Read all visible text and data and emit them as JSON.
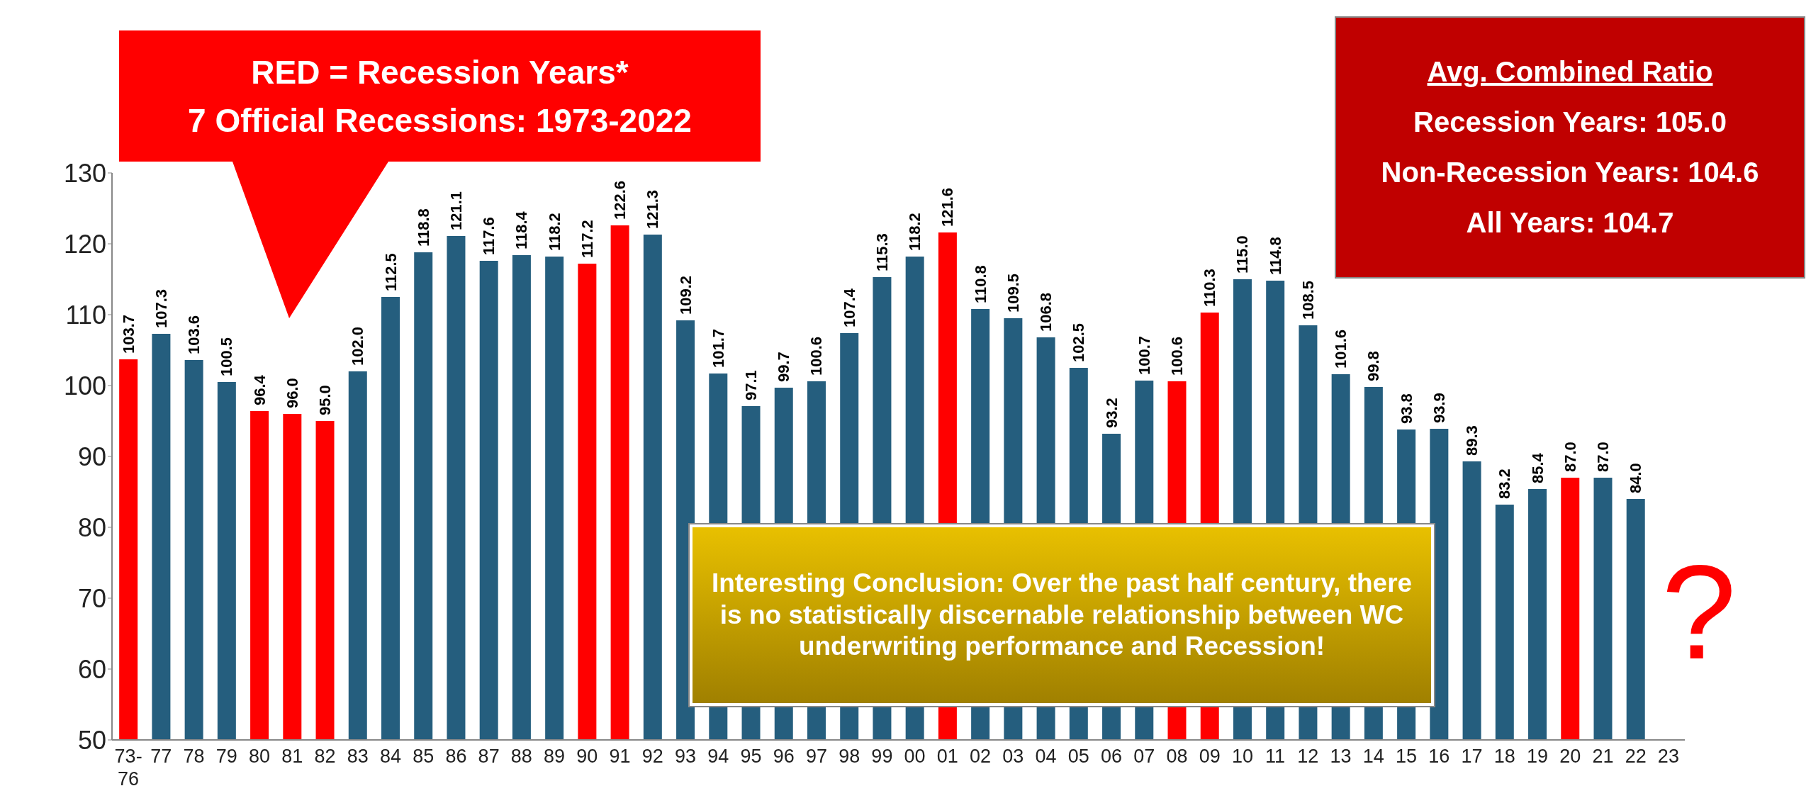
{
  "chart_data": {
    "type": "bar",
    "categories": [
      "73-76",
      "77",
      "78",
      "79",
      "80",
      "81",
      "82",
      "83",
      "84",
      "85",
      "86",
      "87",
      "88",
      "89",
      "90",
      "91",
      "92",
      "93",
      "94",
      "95",
      "96",
      "97",
      "98",
      "99",
      "00",
      "01",
      "02",
      "03",
      "04",
      "05",
      "06",
      "07",
      "08",
      "09",
      "10",
      "11",
      "12",
      "13",
      "14",
      "15",
      "16",
      "17",
      "18",
      "19",
      "20",
      "21",
      "22",
      "23"
    ],
    "values": [
      103.7,
      107.3,
      103.6,
      100.5,
      96.4,
      96.0,
      95.0,
      102.0,
      112.5,
      118.8,
      121.1,
      117.6,
      118.4,
      118.2,
      117.2,
      122.6,
      121.3,
      109.2,
      101.7,
      97.1,
      99.7,
      100.6,
      107.4,
      115.3,
      118.2,
      121.6,
      110.8,
      109.5,
      106.8,
      102.5,
      93.2,
      100.7,
      100.6,
      110.3,
      115.0,
      114.8,
      108.5,
      101.6,
      99.8,
      93.8,
      93.9,
      89.3,
      83.2,
      85.4,
      87.0,
      87.0,
      84.0,
      null
    ],
    "colors": [
      "#ff0000",
      "#255e7e",
      "#255e7e",
      "#255e7e",
      "#ff0000",
      "#ff0000",
      "#ff0000",
      "#255e7e",
      "#255e7e",
      "#255e7e",
      "#255e7e",
      "#255e7e",
      "#255e7e",
      "#255e7e",
      "#ff0000",
      "#ff0000",
      "#255e7e",
      "#255e7e",
      "#255e7e",
      "#255e7e",
      "#255e7e",
      "#255e7e",
      "#255e7e",
      "#255e7e",
      "#255e7e",
      "#ff0000",
      "#255e7e",
      "#255e7e",
      "#255e7e",
      "#255e7e",
      "#255e7e",
      "#255e7e",
      "#ff0000",
      "#ff0000",
      "#255e7e",
      "#255e7e",
      "#255e7e",
      "#255e7e",
      "#255e7e",
      "#255e7e",
      "#255e7e",
      "#255e7e",
      "#255e7e",
      "#255e7e",
      "#ff0000",
      "#255e7e",
      "#255e7e",
      "#255e7e"
    ],
    "ylim": [
      50,
      130
    ],
    "yticks": [
      50,
      60,
      70,
      80,
      90,
      100,
      110,
      120,
      130
    ],
    "value_labels": [
      "103.7",
      "107.3",
      "103.6",
      "100.5",
      "96.4",
      "96.0",
      "95.0",
      "102.0",
      "112.5",
      "118.8",
      "121.1",
      "117.6",
      "118.4",
      "118.2",
      "117.2",
      "122.6",
      "121.3",
      "109.2",
      "101.7",
      "97.1",
      "99.7",
      "100.6",
      "107.4",
      "115.3",
      "118.2",
      "121.6",
      "110.8",
      "109.5",
      "106.8",
      "102.5",
      "93.2",
      "100.7",
      "100.6",
      "110.3",
      "115.0",
      "114.8",
      "108.5",
      "101.6",
      "99.8",
      "93.8",
      "93.9",
      "89.3",
      "83.2",
      "85.4",
      "87.0",
      "87.0",
      "84.0",
      null
    ],
    "grid": false,
    "legend": false,
    "annotations": [
      "RED = Recession Years*",
      "7 Official Recessions: 1973-2022",
      "Avg. Combined Ratio",
      "Recession Years: 105.0",
      "Non-Recession Years: 104.6",
      "All Years: 104.7",
      "Interesting Conclusion: Over the past half century, there is no statistically discernable relationship between WC underwriting performance and Recession!",
      "?"
    ]
  }
}
